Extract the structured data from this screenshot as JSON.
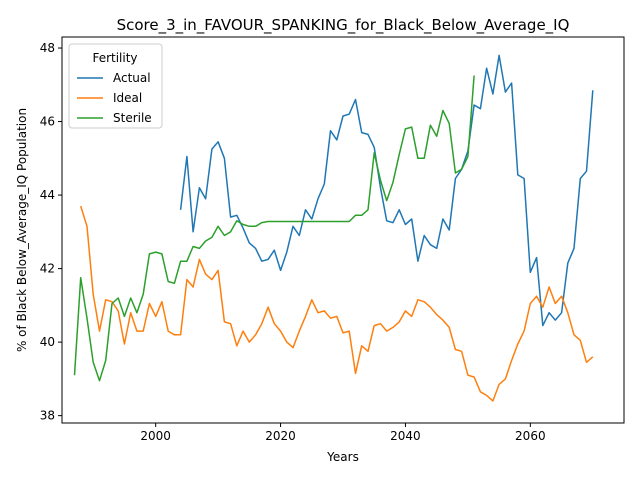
{
  "chart_data": {
    "type": "line",
    "title": "Score_3_in_FAVOUR_SPANKING_for_Black_Below_Average_IQ",
    "xlabel": "Years",
    "ylabel": "% of Black Below_Average_IQ Population",
    "xlim": [
      1985,
      2075
    ],
    "ylim": [
      37.8,
      48.3
    ],
    "x_ticks": [
      2000,
      2020,
      2040,
      2060
    ],
    "y_ticks": [
      38,
      40,
      42,
      44,
      46,
      48
    ],
    "grid": false,
    "legend": {
      "title": "Fertility",
      "placement": "top-left"
    },
    "series": [
      {
        "name": "Actual",
        "color": "#1f77b4",
        "points": [
          [
            2004,
            43.6
          ],
          [
            2005,
            45.05
          ],
          [
            2006,
            43.0
          ],
          [
            2007,
            44.2
          ],
          [
            2008,
            43.9
          ],
          [
            2009,
            45.25
          ],
          [
            2010,
            45.45
          ],
          [
            2011,
            45.0
          ],
          [
            2012,
            43.4
          ],
          [
            2013,
            43.45
          ],
          [
            2014,
            43.1
          ],
          [
            2015,
            42.7
          ],
          [
            2016,
            42.55
          ],
          [
            2017,
            42.2
          ],
          [
            2018,
            42.25
          ],
          [
            2019,
            42.5
          ],
          [
            2020,
            41.95
          ],
          [
            2021,
            42.45
          ],
          [
            2022,
            43.15
          ],
          [
            2023,
            42.9
          ],
          [
            2024,
            43.6
          ],
          [
            2025,
            43.35
          ],
          [
            2026,
            43.9
          ],
          [
            2027,
            44.3
          ],
          [
            2028,
            45.75
          ],
          [
            2029,
            45.5
          ],
          [
            2030,
            46.15
          ],
          [
            2031,
            46.2
          ],
          [
            2032,
            46.6
          ],
          [
            2033,
            45.7
          ],
          [
            2034,
            45.65
          ],
          [
            2035,
            45.3
          ],
          [
            2036,
            44.2
          ],
          [
            2037,
            43.3
          ],
          [
            2038,
            43.25
          ],
          [
            2039,
            43.6
          ],
          [
            2040,
            43.2
          ],
          [
            2041,
            43.35
          ],
          [
            2042,
            42.2
          ],
          [
            2043,
            42.9
          ],
          [
            2044,
            42.65
          ],
          [
            2045,
            42.55
          ],
          [
            2046,
            43.35
          ],
          [
            2047,
            43.05
          ],
          [
            2048,
            44.45
          ],
          [
            2049,
            44.7
          ],
          [
            2050,
            45.2
          ],
          [
            2051,
            46.45
          ],
          [
            2052,
            46.35
          ],
          [
            2053,
            47.45
          ],
          [
            2054,
            46.75
          ],
          [
            2055,
            47.8
          ],
          [
            2056,
            46.8
          ],
          [
            2057,
            47.05
          ],
          [
            2058,
            44.55
          ],
          [
            2059,
            44.45
          ],
          [
            2060,
            41.9
          ],
          [
            2061,
            42.3
          ],
          [
            2062,
            40.45
          ],
          [
            2063,
            40.8
          ],
          [
            2064,
            40.6
          ],
          [
            2065,
            40.8
          ],
          [
            2066,
            42.15
          ],
          [
            2067,
            42.55
          ],
          [
            2068,
            44.45
          ],
          [
            2069,
            44.65
          ],
          [
            2070,
            46.85
          ]
        ]
      },
      {
        "name": "Ideal",
        "color": "#ff7f0e",
        "points": [
          [
            1988,
            43.7
          ],
          [
            1989,
            43.15
          ],
          [
            1990,
            41.3
          ],
          [
            1991,
            40.3
          ],
          [
            1992,
            41.15
          ],
          [
            1993,
            41.1
          ],
          [
            1994,
            40.85
          ],
          [
            1995,
            39.95
          ],
          [
            1996,
            40.8
          ],
          [
            1997,
            40.3
          ],
          [
            1998,
            40.3
          ],
          [
            1999,
            41.05
          ],
          [
            2000,
            40.7
          ],
          [
            2001,
            41.1
          ],
          [
            2002,
            40.3
          ],
          [
            2003,
            40.2
          ],
          [
            2004,
            40.2
          ],
          [
            2005,
            41.7
          ],
          [
            2006,
            41.5
          ],
          [
            2007,
            42.25
          ],
          [
            2008,
            41.85
          ],
          [
            2009,
            41.7
          ],
          [
            2010,
            41.95
          ],
          [
            2011,
            40.55
          ],
          [
            2012,
            40.5
          ],
          [
            2013,
            39.9
          ],
          [
            2014,
            40.3
          ],
          [
            2015,
            40.0
          ],
          [
            2016,
            40.2
          ],
          [
            2017,
            40.5
          ],
          [
            2018,
            40.95
          ],
          [
            2019,
            40.5
          ],
          [
            2020,
            40.3
          ],
          [
            2021,
            40.0
          ],
          [
            2022,
            39.85
          ],
          [
            2023,
            40.3
          ],
          [
            2024,
            40.7
          ],
          [
            2025,
            41.15
          ],
          [
            2026,
            40.8
          ],
          [
            2027,
            40.85
          ],
          [
            2028,
            40.65
          ],
          [
            2029,
            40.7
          ],
          [
            2030,
            40.25
          ],
          [
            2031,
            40.3
          ],
          [
            2032,
            39.15
          ],
          [
            2033,
            39.9
          ],
          [
            2034,
            39.75
          ],
          [
            2035,
            40.45
          ],
          [
            2036,
            40.5
          ],
          [
            2037,
            40.3
          ],
          [
            2038,
            40.4
          ],
          [
            2039,
            40.55
          ],
          [
            2040,
            40.85
          ],
          [
            2041,
            40.7
          ],
          [
            2042,
            41.15
          ],
          [
            2043,
            41.1
          ],
          [
            2044,
            40.95
          ],
          [
            2045,
            40.75
          ],
          [
            2046,
            40.6
          ],
          [
            2047,
            40.4
          ],
          [
            2048,
            39.8
          ],
          [
            2049,
            39.75
          ],
          [
            2050,
            39.1
          ],
          [
            2051,
            39.05
          ],
          [
            2052,
            38.65
          ],
          [
            2053,
            38.55
          ],
          [
            2054,
            38.4
          ],
          [
            2055,
            38.85
          ],
          [
            2056,
            39.0
          ],
          [
            2057,
            39.5
          ],
          [
            2058,
            39.95
          ],
          [
            2059,
            40.3
          ],
          [
            2060,
            41.05
          ],
          [
            2061,
            41.25
          ],
          [
            2062,
            40.95
          ],
          [
            2063,
            41.5
          ],
          [
            2064,
            41.05
          ],
          [
            2065,
            41.25
          ],
          [
            2066,
            40.8
          ],
          [
            2067,
            40.2
          ],
          [
            2068,
            40.05
          ],
          [
            2069,
            39.45
          ],
          [
            2070,
            39.6
          ]
        ]
      },
      {
        "name": "Sterile",
        "color": "#2ca02c",
        "points": [
          [
            1987,
            39.1
          ],
          [
            1988,
            41.75
          ],
          [
            1989,
            40.65
          ],
          [
            1990,
            39.45
          ],
          [
            1991,
            38.95
          ],
          [
            1992,
            39.5
          ],
          [
            1993,
            41.05
          ],
          [
            1994,
            41.2
          ],
          [
            1995,
            40.7
          ],
          [
            1996,
            41.2
          ],
          [
            1997,
            40.8
          ],
          [
            1998,
            41.3
          ],
          [
            1999,
            42.4
          ],
          [
            2000,
            42.45
          ],
          [
            2001,
            42.4
          ],
          [
            2002,
            41.65
          ],
          [
            2003,
            41.6
          ],
          [
            2004,
            42.2
          ],
          [
            2005,
            42.2
          ],
          [
            2006,
            42.6
          ],
          [
            2007,
            42.55
          ],
          [
            2008,
            42.75
          ],
          [
            2009,
            42.85
          ],
          [
            2010,
            43.15
          ],
          [
            2011,
            42.9
          ],
          [
            2012,
            43.0
          ],
          [
            2013,
            43.3
          ],
          [
            2014,
            43.2
          ],
          [
            2015,
            43.15
          ],
          [
            2016,
            43.15
          ],
          [
            2017,
            43.25
          ],
          [
            2018,
            43.28
          ],
          [
            2019,
            43.28
          ],
          [
            2020,
            43.28
          ],
          [
            2021,
            43.28
          ],
          [
            2022,
            43.28
          ],
          [
            2023,
            43.28
          ],
          [
            2024,
            43.28
          ],
          [
            2025,
            43.28
          ],
          [
            2026,
            43.28
          ],
          [
            2027,
            43.28
          ],
          [
            2028,
            43.28
          ],
          [
            2029,
            43.28
          ],
          [
            2030,
            43.28
          ],
          [
            2031,
            43.28
          ],
          [
            2032,
            43.45
          ],
          [
            2033,
            43.45
          ],
          [
            2034,
            43.6
          ],
          [
            2035,
            45.15
          ],
          [
            2036,
            44.4
          ],
          [
            2037,
            43.85
          ],
          [
            2038,
            44.35
          ],
          [
            2039,
            45.1
          ],
          [
            2040,
            45.8
          ],
          [
            2041,
            45.85
          ],
          [
            2042,
            45.0
          ],
          [
            2043,
            45.0
          ],
          [
            2044,
            45.9
          ],
          [
            2045,
            45.6
          ],
          [
            2046,
            46.3
          ],
          [
            2047,
            45.95
          ],
          [
            2048,
            44.6
          ],
          [
            2049,
            44.7
          ],
          [
            2050,
            45.05
          ],
          [
            2051,
            47.25
          ]
        ]
      }
    ]
  }
}
